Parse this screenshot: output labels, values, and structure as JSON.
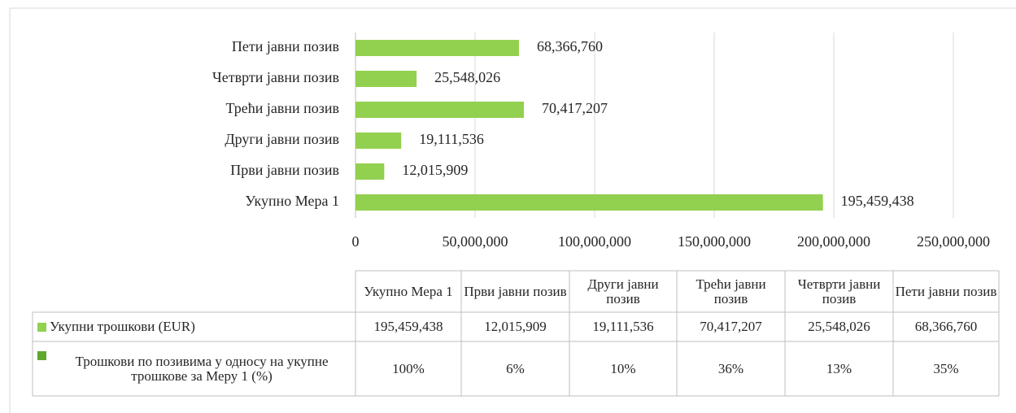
{
  "chart_data": {
    "type": "hbar",
    "categories": [
      "Укупно Мера 1",
      "Први јавни позив",
      "Други јавни позив",
      "Трећи јавни позив",
      "Четврти јавни позив",
      "Пети јавни позив"
    ],
    "values": [
      195459438,
      12015909,
      19111536,
      70417207,
      25548026,
      68366760
    ],
    "value_labels": [
      "195,459,438",
      "12,015,909",
      "19,111,536",
      "70,417,207",
      "25,548,026",
      "68,366,760"
    ],
    "color": "#92d050",
    "xlim": [
      0,
      250000000
    ],
    "xticks": [
      0,
      {
        "value": 50000000,
        "label": "50,000,000"
      },
      {
        "value": 100000000,
        "label": "100,000,000"
      },
      {
        "value": 150000000,
        "label": "150,000,000"
      },
      {
        "value": 200000000,
        "label": "200,000,000"
      },
      {
        "value": 250000000,
        "label": "250,000,000"
      }
    ],
    "grid": true,
    "data_table": {
      "rows": [
        {
          "name": "Укупни трошкови (EUR)"
        },
        {
          "name": "Трошкови по позивима у односу на укупне трошкове за Меру 1 (%)",
          "color": "#5fa82e",
          "values": [
            100,
            6,
            10,
            36,
            13,
            35
          ],
          "value_labels": [
            "100%",
            "6%",
            "10%",
            "36%",
            "13%",
            "35%"
          ]
        }
      ]
    }
  }
}
